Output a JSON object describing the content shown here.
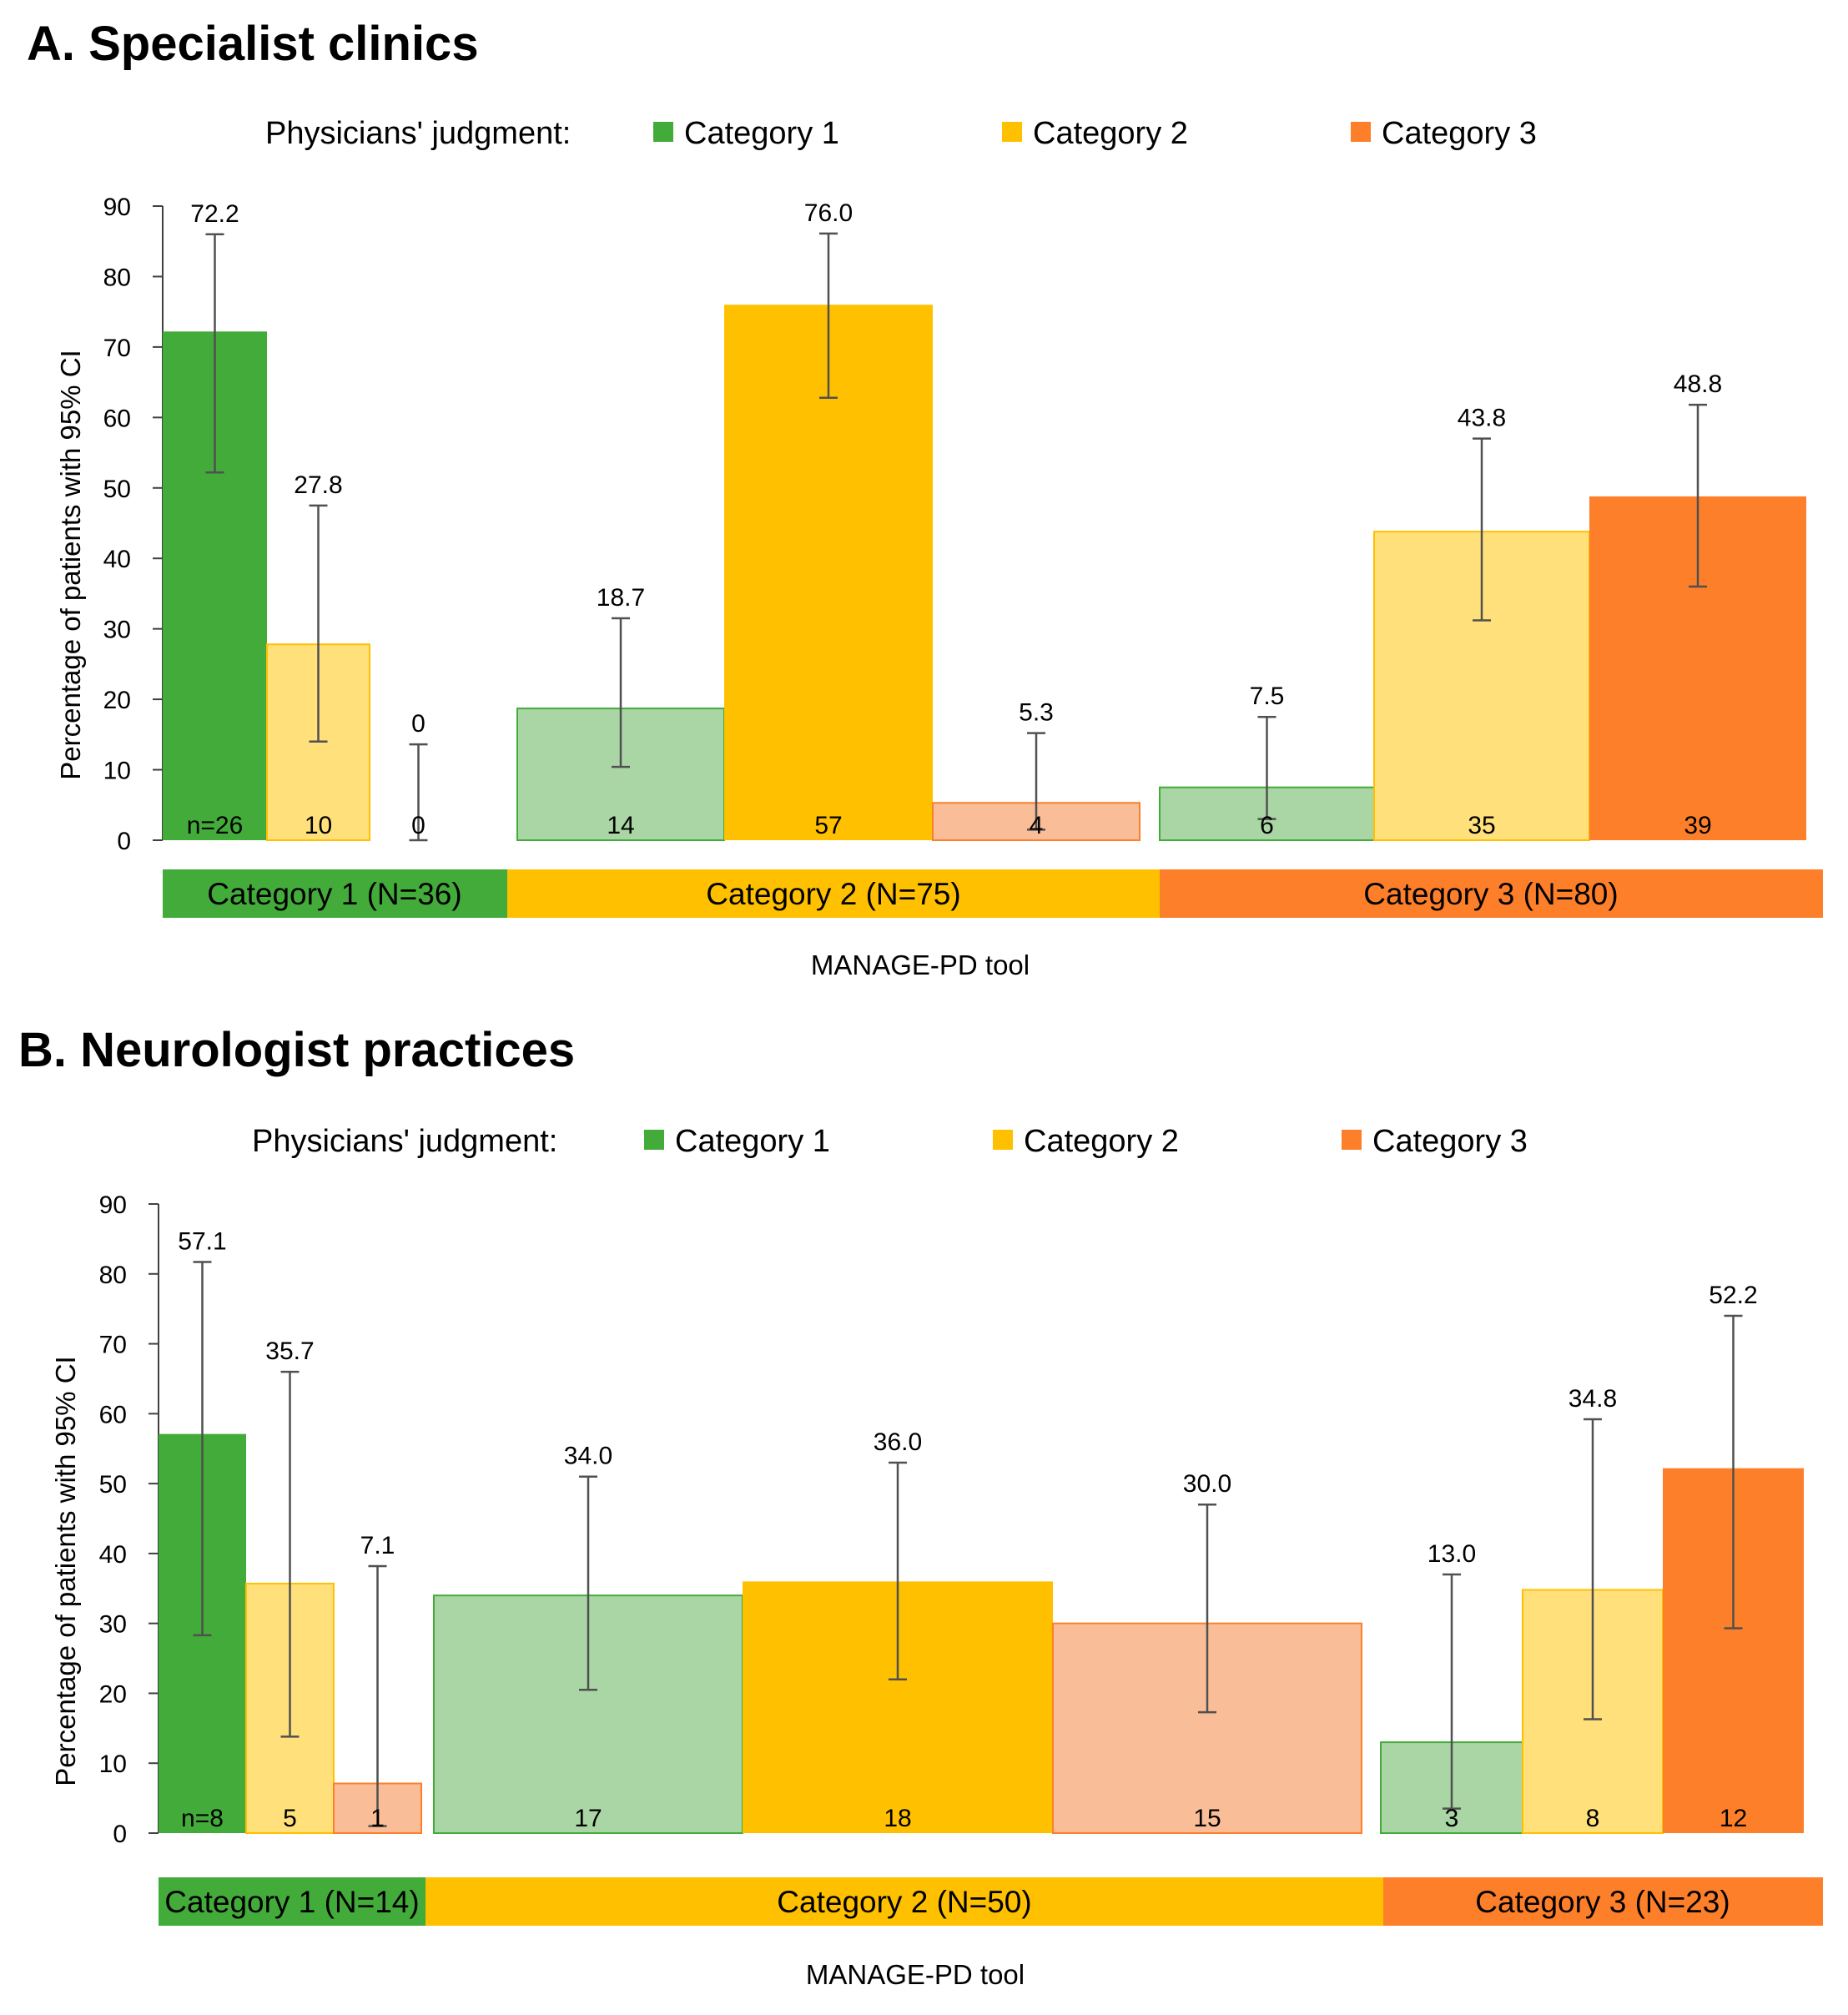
{
  "colors": {
    "cat1": "#43AB3A",
    "cat2": "#FFC000",
    "cat3": "#FD7F2A"
  },
  "chart_data": [
    {
      "type": "bar",
      "title": "A. Specialist clinics",
      "legend_prefix": "Physicians' judgment:",
      "legend": [
        "Category 1",
        "Category 2",
        "Category 3"
      ],
      "ylabel": "Percentage of patients with 95% CI",
      "xlabel": "MANAGE-PD tool",
      "ylim": [
        0,
        90
      ],
      "yticks": [
        "0",
        "10",
        "20",
        "30",
        "40",
        "50",
        "60",
        "70",
        "80",
        "90"
      ],
      "groups": [
        {
          "label": "Category 1 (N=36)",
          "bars": [
            {
              "value": 72.2,
              "value_label": "72.2",
              "ci": [
                52.2,
                86.0
              ],
              "n_label": "n=26"
            },
            {
              "value": 27.8,
              "value_label": "27.8",
              "ci": [
                14.0,
                47.5
              ],
              "n_label": "10"
            },
            {
              "value": 0,
              "value_label": "0",
              "ci": [
                0,
                13.6
              ],
              "n_label": "0"
            }
          ]
        },
        {
          "label": "Category 2 (N=75)",
          "bars": [
            {
              "value": 18.7,
              "value_label": "18.7",
              "ci": [
                10.4,
                31.5
              ],
              "n_label": "14"
            },
            {
              "value": 76.0,
              "value_label": "76.0",
              "ci": [
                62.8,
                86.1
              ],
              "n_label": "57"
            },
            {
              "value": 5.3,
              "value_label": "5.3",
              "ci": [
                1.5,
                15.2
              ],
              "n_label": "4"
            }
          ]
        },
        {
          "label": "Category 3 (N=80)",
          "bars": [
            {
              "value": 7.5,
              "value_label": "7.5",
              "ci": [
                3.0,
                17.5
              ],
              "n_label": "6"
            },
            {
              "value": 43.8,
              "value_label": "43.8",
              "ci": [
                31.2,
                57.0
              ],
              "n_label": "35"
            },
            {
              "value": 48.8,
              "value_label": "48.8",
              "ci": [
                36.0,
                61.8
              ],
              "n_label": "39"
            }
          ]
        }
      ]
    },
    {
      "type": "bar",
      "title": "B. Neurologist practices",
      "legend_prefix": "Physicians' judgment:",
      "legend": [
        "Category 1",
        "Category 2",
        "Category 3"
      ],
      "ylabel": "Percentage of patients with 95% CI",
      "xlabel": "MANAGE-PD tool",
      "ylim": [
        0,
        90
      ],
      "yticks": [
        "0",
        "10",
        "20",
        "30",
        "40",
        "50",
        "60",
        "70",
        "80",
        "90"
      ],
      "groups": [
        {
          "label": "Category 1 (N=14)",
          "bars": [
            {
              "value": 57.1,
              "value_label": "57.1",
              "ci": [
                28.3,
                81.7
              ],
              "n_label": "n=8"
            },
            {
              "value": 35.7,
              "value_label": "35.7",
              "ci": [
                13.8,
                66.0
              ],
              "n_label": "5"
            },
            {
              "value": 7.1,
              "value_label": "7.1",
              "ci": [
                1.0,
                38.2
              ],
              "n_label": "1"
            }
          ]
        },
        {
          "label": "Category 2 (N=50)",
          "bars": [
            {
              "value": 34.0,
              "value_label": "34.0",
              "ci": [
                20.5,
                51.0
              ],
              "n_label": "17"
            },
            {
              "value": 36.0,
              "value_label": "36.0",
              "ci": [
                22.0,
                53.0
              ],
              "n_label": "18"
            },
            {
              "value": 30.0,
              "value_label": "30.0",
              "ci": [
                17.3,
                47.0
              ],
              "n_label": "15"
            }
          ]
        },
        {
          "label": "Category 3 (N=23)",
          "bars": [
            {
              "value": 13.0,
              "value_label": "13.0",
              "ci": [
                3.5,
                37.0
              ],
              "n_label": "3"
            },
            {
              "value": 34.8,
              "value_label": "34.8",
              "ci": [
                16.3,
                59.2
              ],
              "n_label": "8"
            },
            {
              "value": 52.2,
              "value_label": "52.2",
              "ci": [
                29.3,
                74.0
              ],
              "n_label": "12"
            }
          ]
        }
      ]
    }
  ]
}
